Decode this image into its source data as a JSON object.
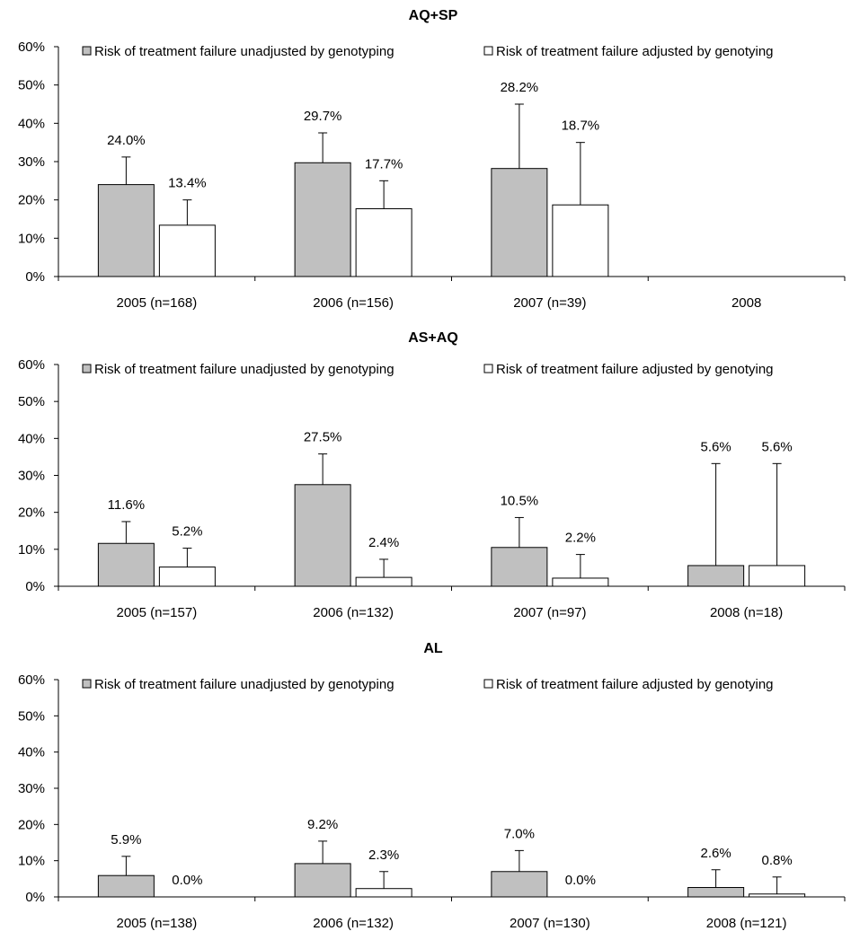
{
  "chart_data": [
    {
      "type": "bar",
      "title": "AQ+SP",
      "categories": [
        "2005 (n=168)",
        "2006 (n=156)",
        "2007 (n=39)",
        "2008"
      ],
      "series": [
        {
          "name": "Risk of treatment failure unadjusted by genotyping",
          "color": "#c0c0c0",
          "values": [
            24.0,
            29.7,
            28.2,
            null
          ],
          "labels": [
            "24.0%",
            "29.7%",
            "28.2%",
            null
          ],
          "error_upper": [
            31.2,
            37.5,
            45.0,
            null
          ]
        },
        {
          "name": "Risk of treatment failure adjusted by genotying",
          "color": "#ffffff",
          "values": [
            13.4,
            17.7,
            18.7,
            null
          ],
          "labels": [
            "13.4%",
            "17.7%",
            "18.7%",
            null
          ],
          "error_upper": [
            20.0,
            25.0,
            35.0,
            null
          ]
        }
      ],
      "ylim": [
        0,
        60
      ],
      "yticks": [
        "0%",
        "10%",
        "20%",
        "30%",
        "40%",
        "50%",
        "60%"
      ],
      "grid": false,
      "legend_position": "top"
    },
    {
      "type": "bar",
      "title": "AS+AQ",
      "categories": [
        "2005 (n=157)",
        "2006 (n=132)",
        "2007 (n=97)",
        "2008 (n=18)"
      ],
      "series": [
        {
          "name": "Risk of treatment failure unadjusted by genotyping",
          "color": "#c0c0c0",
          "values": [
            11.6,
            27.5,
            10.5,
            5.6
          ],
          "labels": [
            "11.6%",
            "27.5%",
            "10.5%",
            "5.6%"
          ],
          "error_upper": [
            17.5,
            35.8,
            18.6,
            33.2
          ]
        },
        {
          "name": "Risk of treatment failure adjusted by genotying",
          "color": "#ffffff",
          "values": [
            5.2,
            2.4,
            2.2,
            5.6
          ],
          "labels": [
            "5.2%",
            "2.4%",
            "2.2%",
            "5.6%"
          ],
          "error_upper": [
            10.3,
            7.3,
            8.6,
            33.2
          ]
        }
      ],
      "ylim": [
        0,
        60
      ],
      "yticks": [
        "0%",
        "10%",
        "20%",
        "30%",
        "40%",
        "50%",
        "60%"
      ],
      "grid": false,
      "legend_position": "top"
    },
    {
      "type": "bar",
      "title": "AL",
      "categories": [
        "2005 (n=138)",
        "2006 (n=132)",
        "2007 (n=130)",
        "2008 (n=121)"
      ],
      "series": [
        {
          "name": "Risk of treatment failure unadjusted by genotyping",
          "color": "#c0c0c0",
          "values": [
            5.9,
            9.2,
            7.0,
            2.6
          ],
          "labels": [
            "5.9%",
            "9.2%",
            "7.0%",
            "2.6%"
          ],
          "error_upper": [
            11.2,
            15.4,
            12.8,
            7.5
          ]
        },
        {
          "name": "Risk of treatment failure adjusted by genotying",
          "color": "#ffffff",
          "values": [
            0.0,
            2.3,
            0.0,
            0.8
          ],
          "labels": [
            "0.0%",
            "2.3%",
            "0.0%",
            "0.8%"
          ],
          "error_upper": [
            null,
            7.0,
            null,
            5.5
          ]
        }
      ],
      "ylim": [
        0,
        60
      ],
      "yticks": [
        "0%",
        "10%",
        "20%",
        "30%",
        "40%",
        "50%",
        "60%"
      ],
      "grid": false,
      "legend_position": "top"
    }
  ]
}
